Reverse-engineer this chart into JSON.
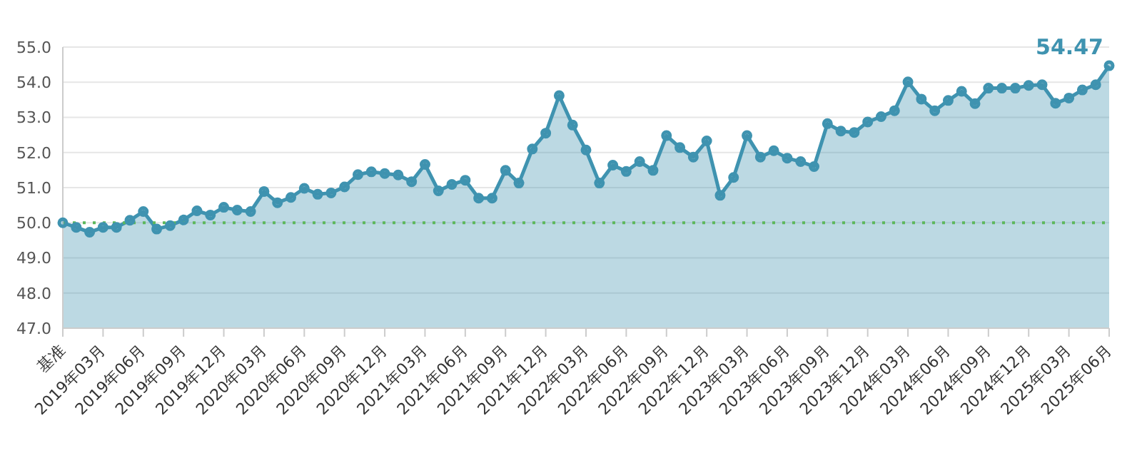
{
  "chart_data": {
    "type": "area",
    "categories": [
      "基准",
      null,
      null,
      "2019年03月",
      null,
      null,
      "2019年06月",
      null,
      null,
      "2019年09月",
      null,
      null,
      "2019年12月",
      null,
      null,
      "2020年03月",
      null,
      null,
      "2020年06月",
      null,
      null,
      "2020年09月",
      null,
      null,
      "2020年12月",
      null,
      null,
      "2021年03月",
      null,
      null,
      "2021年06月",
      null,
      null,
      "2021年09月",
      null,
      null,
      "2021年12月",
      null,
      null,
      "2022年03月",
      null,
      null,
      "2022年06月",
      null,
      null,
      "2022年09月",
      null,
      null,
      "2022年12月",
      null,
      null,
      "2023年03月",
      null,
      null,
      "2023年06月",
      null,
      null,
      "2023年09月",
      null,
      null,
      "2023年12月",
      null,
      null,
      "2024年03月",
      null,
      null,
      "2024年06月",
      null,
      null,
      "2024年09月",
      null,
      null,
      "2024年12月",
      null,
      null,
      "2025年03月",
      null,
      null,
      "2025年06月"
    ],
    "series": [
      {
        "color": "#3f93b0",
        "values": [
          50.0,
          49.87,
          49.73,
          49.87,
          49.87,
          50.07,
          50.32,
          49.82,
          49.92,
          50.08,
          50.34,
          50.22,
          50.44,
          50.36,
          50.32,
          50.89,
          50.57,
          50.72,
          50.98,
          50.81,
          50.85,
          51.02,
          51.37,
          51.45,
          51.4,
          51.36,
          51.17,
          51.66,
          50.91,
          51.09,
          51.21,
          50.7,
          50.7,
          51.49,
          51.13,
          52.1,
          52.55,
          53.62,
          52.78,
          52.07,
          51.13,
          51.64,
          51.46,
          51.74,
          51.49,
          52.48,
          52.14,
          51.87,
          52.33,
          50.78,
          51.29,
          52.48,
          51.87,
          52.05,
          51.84,
          51.74,
          51.6,
          52.82,
          52.61,
          52.57,
          52.87,
          53.02,
          53.19,
          54.01,
          53.52,
          53.19,
          53.48,
          53.74,
          53.39,
          53.83,
          53.83,
          53.83,
          53.91,
          53.93,
          53.4,
          53.55,
          53.78,
          53.93,
          54.47
        ],
        "value_labels": [
          null,
          null,
          null,
          null,
          null,
          null,
          null,
          null,
          null,
          null,
          null,
          null,
          null,
          null,
          null,
          null,
          null,
          null,
          null,
          null,
          null,
          null,
          null,
          null,
          null,
          null,
          null,
          null,
          null,
          null,
          null,
          null,
          null,
          null,
          null,
          null,
          null,
          null,
          null,
          null,
          null,
          null,
          null,
          null,
          null,
          null,
          null,
          null,
          null,
          null,
          null,
          null,
          null,
          null,
          null,
          null,
          null,
          null,
          null,
          null,
          null,
          null,
          null,
          null,
          null,
          null,
          null,
          null,
          null,
          null,
          null,
          null,
          null,
          null,
          null,
          null,
          null,
          null,
          "54.47"
        ]
      }
    ],
    "ylim": [
      47,
      55
    ],
    "yticks": [
      {
        "value": 47,
        "label": "47.0"
      },
      {
        "value": 48,
        "label": "48.0"
      },
      {
        "value": 49,
        "label": "49.0"
      },
      {
        "value": 50,
        "label": "50.0"
      },
      {
        "value": 51,
        "label": "51.0"
      },
      {
        "value": 52,
        "label": "52.0"
      },
      {
        "value": 53,
        "label": "53.0"
      },
      {
        "value": 54,
        "label": "54.0"
      },
      {
        "value": 55,
        "label": "55.0"
      }
    ],
    "grid": "y",
    "marker": "circle",
    "line_style": "solid",
    "ref_lines": [
      {
        "axis": "y",
        "value": 50,
        "color": "#5cb85c",
        "line_style": "dotted"
      }
    ]
  }
}
